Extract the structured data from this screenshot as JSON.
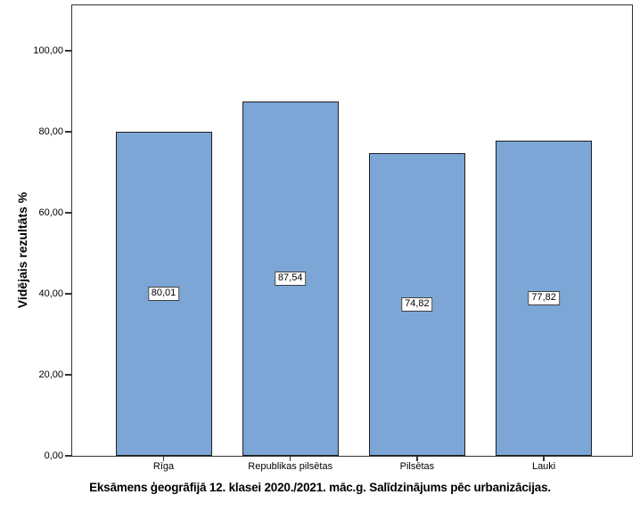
{
  "chart_data": {
    "type": "bar",
    "title": "Eksāmens ģeogrāfijā 12. klasei 2020./2021. māc.g. Salīdzinājums pēc urbanizācijas.",
    "ylabel": "Vidējais rezultāts %",
    "xlabel": "",
    "categories": [
      "Rīga",
      "Republikas pilsētas",
      "Pilsētas",
      "Lauki"
    ],
    "values": [
      80.01,
      87.54,
      74.82,
      77.82
    ],
    "value_labels": [
      "80,01",
      "87,54",
      "74,82",
      "77,82"
    ],
    "yticks": [
      0,
      20,
      40,
      60,
      80,
      100
    ],
    "ytick_labels": [
      "0,00",
      "20,00",
      "40,00",
      "60,00",
      "80,00",
      "100,00"
    ],
    "ylim": [
      0,
      111.6
    ],
    "grid": false,
    "legend": null,
    "colors": {
      "bar_fill": "#7BA6D5",
      "bar_border": "#1f1f1f",
      "frame": "#333333",
      "value_box_bg": "#ffffff",
      "value_box_border": "#3f3f3f",
      "text": "#000000",
      "background": "#ffffff"
    }
  }
}
